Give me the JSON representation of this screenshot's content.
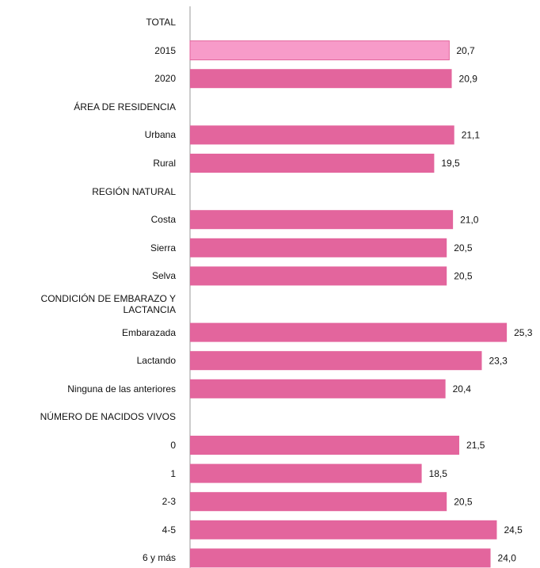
{
  "chart_data": {
    "type": "hbar",
    "categories": [
      "TOTAL",
      "2015",
      "2020",
      "ÁREA DE RESIDENCIA",
      "Urbana",
      "Rural",
      "REGIÓN NATURAL",
      "Costa",
      "Sierra",
      "Selva",
      "CONDICIÓN DE EMBARAZO Y LACTANCIA",
      "Embarazada",
      "Lactando",
      "Ninguna de las anteriores",
      "NÚMERO DE NACIDOS VIVOS",
      "0",
      "1",
      "2-3",
      "4-5",
      "6 y más"
    ],
    "values": [
      null,
      20.7,
      20.9,
      null,
      21.1,
      19.5,
      null,
      21.0,
      20.5,
      20.5,
      null,
      25.3,
      23.3,
      20.4,
      null,
      21.5,
      18.5,
      20.5,
      24.5,
      24.0
    ],
    "value_labels": [
      null,
      "20,7",
      "20,9",
      null,
      "21,1",
      "19,5",
      null,
      "21,0",
      "20,5",
      "20,5",
      null,
      "25,3",
      "23,3",
      "20,4",
      null,
      "21,5",
      "18,5",
      "20,5",
      "24,5",
      "24,0"
    ],
    "colors": [
      null,
      "#f79bc9",
      "#e3659d",
      null,
      "#e3659d",
      "#e3659d",
      null,
      "#e3659d",
      "#e3659d",
      "#e3659d",
      null,
      "#e3659d",
      "#e3659d",
      "#e3659d",
      null,
      "#e3659d",
      "#e3659d",
      "#e3659d",
      "#e3659d",
      "#e3659d"
    ],
    "xlim": [
      0,
      27
    ]
  }
}
